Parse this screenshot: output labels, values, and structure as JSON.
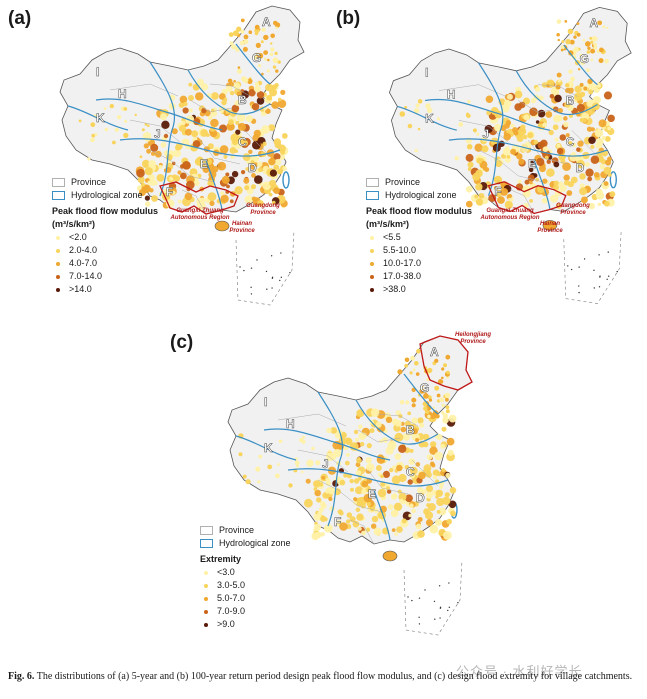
{
  "panels": [
    {
      "label": "(a)",
      "legend": {
        "province": "Province",
        "zone": "Hydrological zone",
        "title": "Peak flood flow modulus",
        "unit": "(m³/s/km²)",
        "classes": [
          "<2.0",
          "2.0-4.0",
          "4.0-7.0",
          "7.0-14.0",
          ">14.0"
        ],
        "colors": [
          "#fff1a8",
          "#f9d45c",
          "#f0a830",
          "#c9631a",
          "#5a1a08"
        ]
      },
      "provinces": {
        "guangxi": "Guangxi Zhuang\nAutonomous Region",
        "guangdong": "Guangdong\nProvince",
        "hainan": "Hainan\nProvince"
      }
    },
    {
      "label": "(b)",
      "legend": {
        "province": "Province",
        "zone": "Hydrological zone",
        "title": "Peak flood flow modulus",
        "unit": "(m³/s/km²)",
        "classes": [
          "<5.5",
          "5.5-10.0",
          "10.0-17.0",
          "17.0-38.0",
          ">38.0"
        ],
        "colors": [
          "#fff1a8",
          "#f9d45c",
          "#f0a830",
          "#c9631a",
          "#5a1a08"
        ]
      },
      "provinces": {
        "guangxi": "Guangxi Zhuang\nAutonomous Region",
        "guangdong": "Guangdong\nProvince",
        "hainan": "Hainan\nProvince"
      }
    },
    {
      "label": "(c)",
      "legend": {
        "province": "Province",
        "zone": "Hydrological zone",
        "title": "Extremity",
        "classes": [
          "<3.0",
          "3.0-5.0",
          "5.0-7.0",
          "7.0-9.0",
          ">9.0"
        ],
        "colors": [
          "#fff1a8",
          "#f9d45c",
          "#f0a830",
          "#c9631a",
          "#5a1a08"
        ]
      },
      "provinces": {
        "heilongjiang": "Heilongjiang\nProvince"
      }
    }
  ],
  "zones": [
    "A",
    "B",
    "C",
    "D",
    "E",
    "F",
    "G",
    "H",
    "I",
    "J",
    "K"
  ],
  "caption": {
    "label": "Fig. 6.",
    "text": " The distributions of (a) 5-year and (b) 100-year return period design peak flood flow modulus, and (c) design flood extremity for village catchments."
  },
  "watermark": "公众号 · 水利好学长",
  "colors": {
    "land": "#f1f1f1",
    "outline": "#555555",
    "zone": "#3a8fc4",
    "province_highlight": "#c01818",
    "province_label": "#b01a1a"
  }
}
